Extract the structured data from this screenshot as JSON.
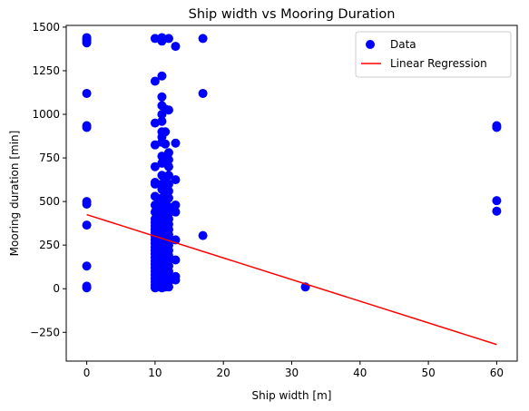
{
  "chart_data": {
    "type": "scatter",
    "title": "Ship width vs Mooring Duration",
    "xlabel": "Ship width [m]",
    "ylabel": "Mooring duration [min]",
    "xlim": [
      -3,
      63
    ],
    "ylim": [
      -415,
      1510
    ],
    "xticks": [
      0,
      10,
      20,
      30,
      40,
      50,
      60
    ],
    "yticks": [
      -250,
      0,
      250,
      500,
      750,
      1000,
      1250,
      1500
    ],
    "grid": false,
    "legend_position": "top-right",
    "colors": {
      "points": "#0000ff",
      "regression": "#ff0000"
    },
    "series": [
      {
        "name": "Data",
        "kind": "scatter",
        "points": [
          [
            0,
            1440
          ],
          [
            0,
            1430
          ],
          [
            0,
            1420
          ],
          [
            0,
            1410
          ],
          [
            0,
            1120
          ],
          [
            0,
            935
          ],
          [
            0,
            925
          ],
          [
            0,
            500
          ],
          [
            0,
            485
          ],
          [
            0,
            365
          ],
          [
            0,
            130
          ],
          [
            0,
            15
          ],
          [
            0,
            5
          ],
          [
            10,
            1435
          ],
          [
            10,
            1190
          ],
          [
            10,
            950
          ],
          [
            10,
            825
          ],
          [
            10,
            700
          ],
          [
            10,
            610
          ],
          [
            10,
            600
          ],
          [
            10,
            530
          ],
          [
            10,
            480
          ],
          [
            10,
            440
          ],
          [
            10,
            400
          ],
          [
            10,
            380
          ],
          [
            10,
            360
          ],
          [
            10,
            340
          ],
          [
            10,
            320
          ],
          [
            10,
            300
          ],
          [
            10,
            280
          ],
          [
            10,
            260
          ],
          [
            10,
            240
          ],
          [
            10,
            220
          ],
          [
            10,
            200
          ],
          [
            10,
            180
          ],
          [
            10,
            160
          ],
          [
            10,
            140
          ],
          [
            10,
            120
          ],
          [
            10,
            100
          ],
          [
            10,
            80
          ],
          [
            10,
            60
          ],
          [
            10,
            40
          ],
          [
            10,
            20
          ],
          [
            10,
            5
          ],
          [
            10.5,
            500
          ],
          [
            10.5,
            450
          ],
          [
            10.5,
            350
          ],
          [
            10.5,
            250
          ],
          [
            10.5,
            150
          ],
          [
            10.5,
            50
          ],
          [
            10.5,
            10
          ],
          [
            11,
            1440
          ],
          [
            11,
            1420
          ],
          [
            11,
            1220
          ],
          [
            11,
            1100
          ],
          [
            11,
            1050
          ],
          [
            11,
            1000
          ],
          [
            11,
            960
          ],
          [
            11,
            900
          ],
          [
            11,
            870
          ],
          [
            11,
            840
          ],
          [
            11,
            760
          ],
          [
            11,
            720
          ],
          [
            11,
            650
          ],
          [
            11,
            600
          ],
          [
            11,
            570
          ],
          [
            11,
            520
          ],
          [
            11,
            480
          ],
          [
            11,
            450
          ],
          [
            11,
            420
          ],
          [
            11,
            390
          ],
          [
            11,
            360
          ],
          [
            11,
            330
          ],
          [
            11,
            300
          ],
          [
            11,
            270
          ],
          [
            11,
            240
          ],
          [
            11,
            210
          ],
          [
            11,
            180
          ],
          [
            11,
            150
          ],
          [
            11,
            120
          ],
          [
            11,
            90
          ],
          [
            11,
            60
          ],
          [
            11,
            30
          ],
          [
            11,
            5
          ],
          [
            11.5,
            1030
          ],
          [
            11.5,
            900
          ],
          [
            11.5,
            830
          ],
          [
            11.5,
            720
          ],
          [
            11.5,
            640
          ],
          [
            11.5,
            560
          ],
          [
            11.5,
            500
          ],
          [
            11.5,
            460
          ],
          [
            11.5,
            410
          ],
          [
            11.5,
            370
          ],
          [
            11.5,
            330
          ],
          [
            11.5,
            290
          ],
          [
            11.5,
            250
          ],
          [
            11.5,
            210
          ],
          [
            11.5,
            170
          ],
          [
            11.5,
            130
          ],
          [
            11.5,
            90
          ],
          [
            11.5,
            50
          ],
          [
            11.5,
            10
          ],
          [
            12,
            1435
          ],
          [
            12,
            1025
          ],
          [
            12,
            780
          ],
          [
            12,
            740
          ],
          [
            12,
            700
          ],
          [
            12,
            650
          ],
          [
            12,
            600
          ],
          [
            12,
            560
          ],
          [
            12,
            520
          ],
          [
            12,
            470
          ],
          [
            12,
            430
          ],
          [
            12,
            400
          ],
          [
            12,
            370
          ],
          [
            12,
            340
          ],
          [
            12,
            310
          ],
          [
            12,
            280
          ],
          [
            12,
            250
          ],
          [
            12,
            220
          ],
          [
            12,
            190
          ],
          [
            12,
            160
          ],
          [
            12,
            130
          ],
          [
            12,
            100
          ],
          [
            12,
            70
          ],
          [
            12,
            40
          ],
          [
            12,
            10
          ],
          [
            13,
            1390
          ],
          [
            13,
            835
          ],
          [
            13,
            625
          ],
          [
            13,
            480
          ],
          [
            13,
            440
          ],
          [
            13,
            280
          ],
          [
            13,
            165
          ],
          [
            13,
            70
          ],
          [
            13,
            50
          ],
          [
            17,
            1435
          ],
          [
            17,
            1120
          ],
          [
            17,
            305
          ],
          [
            32,
            10
          ],
          [
            60,
            935
          ],
          [
            60,
            925
          ],
          [
            60,
            505
          ],
          [
            60,
            445
          ]
        ]
      },
      {
        "name": "Linear Regression",
        "kind": "line",
        "points": [
          [
            0,
            425
          ],
          [
            60,
            -320
          ]
        ]
      }
    ]
  }
}
